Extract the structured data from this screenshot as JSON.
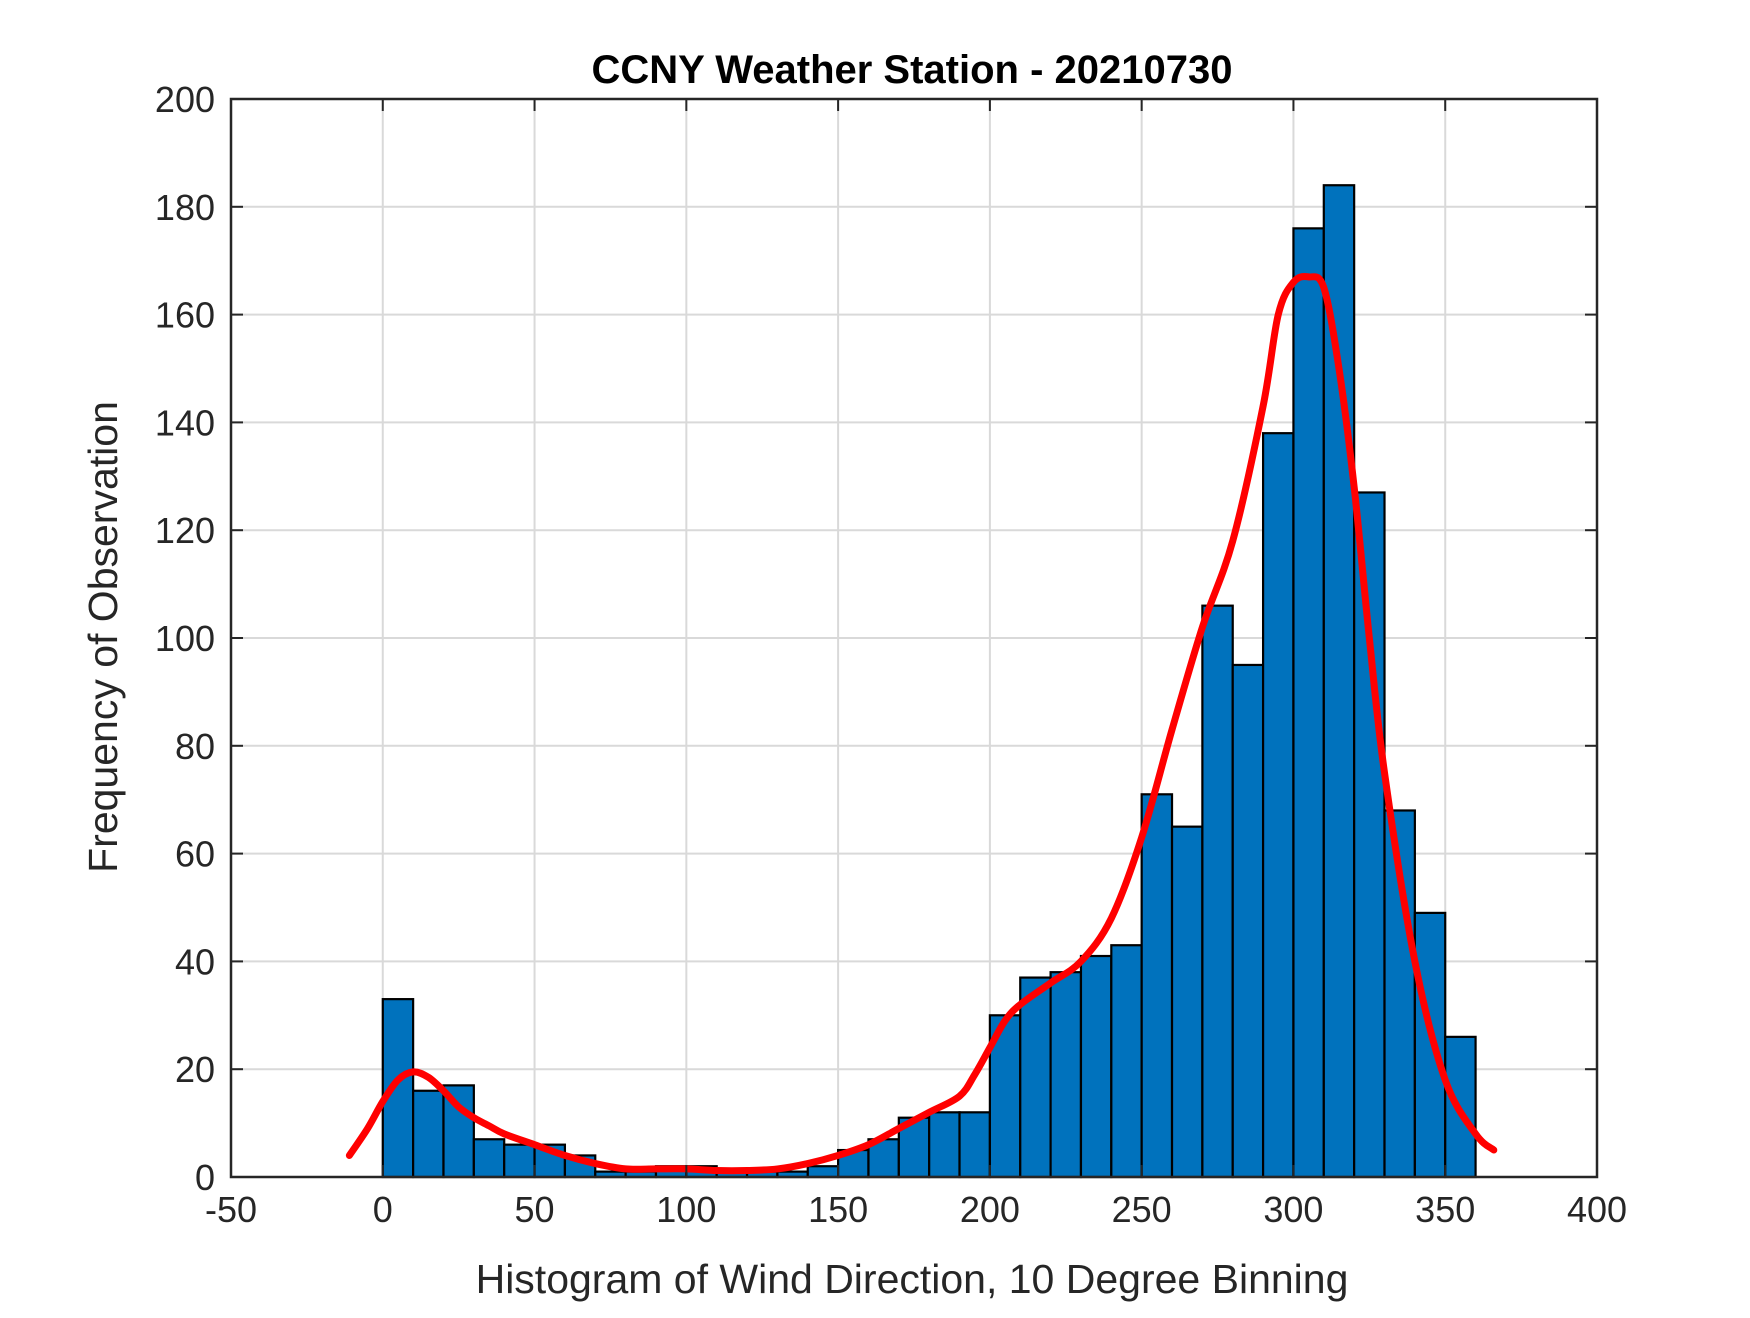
{
  "chart_data": {
    "type": "bar",
    "title": "CCNY Weather Station - 20210730",
    "xlabel": "Histogram of Wind Direction, 10 Degree Binning",
    "ylabel": "Frequency of Observation",
    "xlim": [
      -50,
      400
    ],
    "ylim": [
      0,
      200
    ],
    "xticks": [
      -50,
      0,
      50,
      100,
      150,
      200,
      250,
      300,
      350,
      400
    ],
    "yticks": [
      0,
      20,
      40,
      60,
      80,
      100,
      120,
      140,
      160,
      180,
      200
    ],
    "grid": true,
    "bin_width": 10,
    "bin_edges": [
      0,
      10,
      20,
      30,
      40,
      50,
      60,
      70,
      80,
      90,
      100,
      110,
      120,
      130,
      140,
      150,
      160,
      170,
      180,
      190,
      200,
      210,
      220,
      230,
      240,
      250,
      260,
      270,
      280,
      290,
      300,
      310,
      320,
      330,
      340,
      350,
      360
    ],
    "values": [
      33,
      16,
      17,
      7,
      6,
      6,
      4,
      1,
      1,
      2,
      2,
      1,
      1,
      1,
      2,
      5,
      7,
      11,
      12,
      12,
      30,
      37,
      38,
      41,
      43,
      71,
      65,
      106,
      95,
      138,
      176,
      184,
      127,
      68,
      49,
      26
    ],
    "bar_color": "#0072BD",
    "bar_edge_color": "#000000",
    "fit_curve": {
      "color": "#FF0000",
      "x": [
        -11,
        -5,
        0,
        5,
        10,
        15,
        20,
        25,
        30,
        35,
        40,
        50,
        60,
        70,
        80,
        90,
        100,
        110,
        120,
        130,
        140,
        150,
        160,
        170,
        180,
        190,
        195,
        200,
        205,
        210,
        220,
        230,
        240,
        250,
        260,
        270,
        280,
        290,
        295,
        300,
        305,
        310,
        315,
        320,
        325,
        330,
        340,
        350,
        360,
        366
      ],
      "y": [
        4,
        9,
        14,
        18,
        19.5,
        18.5,
        16,
        13,
        11,
        9.5,
        8,
        6,
        4,
        2.5,
        1.5,
        1.5,
        1.5,
        1.2,
        1.2,
        1.5,
        2.5,
        4,
        6,
        9,
        12,
        15,
        19,
        24,
        29,
        32,
        36,
        40,
        48,
        63,
        83,
        102,
        118,
        143,
        160,
        166,
        167,
        165,
        150,
        128,
        100,
        75,
        40,
        18,
        8,
        5
      ]
    }
  }
}
